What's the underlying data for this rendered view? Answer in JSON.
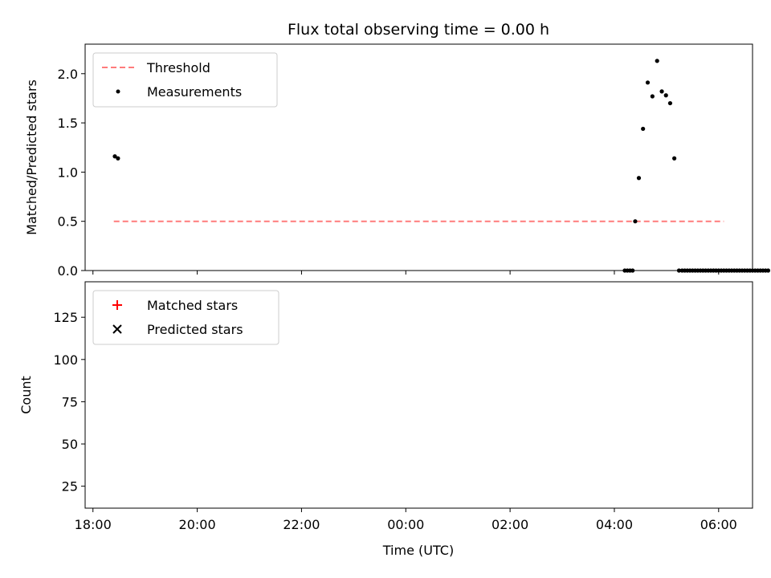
{
  "chart_data": [
    {
      "type": "scatter",
      "title": "Flux total observing time = 0.00 h",
      "xlabel": "",
      "ylabel": "Matched/Predicted stars",
      "ylim": [
        0,
        2.3
      ],
      "yticks": [
        0.0,
        0.5,
        1.0,
        1.5,
        2.0
      ],
      "ytick_labels": [
        "0.0",
        "0.5",
        "1.0",
        "1.5",
        "2.0"
      ],
      "xlim_hours": [
        17.85,
        30.65
      ],
      "legend_position": "top-left",
      "grid": false,
      "series": [
        {
          "name": "Threshold",
          "kind": "line",
          "style": "dashed",
          "color": "#ff7b7b",
          "x": [
            18.4,
            30.1
          ],
          "y": [
            0.5,
            0.5
          ]
        },
        {
          "name": "Measurements",
          "kind": "points",
          "color": "#000000",
          "x": [
            18.42,
            18.48,
            28.2,
            28.25,
            28.3,
            28.35,
            28.4,
            28.47,
            28.55,
            28.64,
            28.73,
            28.82,
            28.91,
            28.99,
            29.07,
            29.15,
            29.24,
            29.3,
            29.35,
            29.4,
            29.45,
            29.5,
            29.55,
            29.6,
            29.65,
            29.7,
            29.75,
            29.8,
            29.85,
            29.9,
            29.95,
            30.0,
            30.05,
            30.1,
            30.15,
            30.2,
            30.25,
            30.3,
            30.35,
            30.4,
            30.45,
            30.5,
            30.55,
            30.6,
            30.65,
            30.7,
            30.75,
            30.8,
            30.85,
            30.9,
            30.95
          ],
          "y": [
            1.16,
            1.14,
            0.0,
            0.0,
            0.0,
            0.0,
            0.5,
            0.94,
            1.44,
            1.91,
            1.77,
            2.13,
            1.82,
            1.78,
            1.7,
            1.14,
            0.0,
            0.0,
            0.0,
            0.0,
            0.0,
            0.0,
            0.0,
            0.0,
            0.0,
            0.0,
            0.0,
            0.0,
            0.0,
            0.0,
            0.0,
            0.0,
            0.0,
            0.0,
            0.0,
            0.0,
            0.0,
            0.0,
            0.0,
            0.0,
            0.0,
            0.0,
            0.0,
            0.0,
            0.0,
            0.0,
            0.0,
            0.0,
            0.0,
            0.0,
            0.0
          ]
        }
      ]
    },
    {
      "type": "scatter",
      "title": "",
      "xlabel": "Time (UTC)",
      "ylabel": "Count",
      "ylim": [
        12,
        146
      ],
      "yticks": [
        25,
        50,
        75,
        100,
        125
      ],
      "ytick_labels": [
        "25",
        "50",
        "75",
        "100",
        "125"
      ],
      "xlim_hours": [
        17.85,
        30.65
      ],
      "xticks_hours": [
        18,
        20,
        22,
        24,
        26,
        28,
        30
      ],
      "xtick_labels": [
        "18:00",
        "20:00",
        "22:00",
        "00:00",
        "02:00",
        "04:00",
        "06:00"
      ],
      "legend_position": "top-left",
      "grid": false,
      "series": [
        {
          "name": "Matched stars",
          "marker": "+",
          "color": "#ff0000",
          "x": [],
          "y": []
        },
        {
          "name": "Predicted stars",
          "marker": "x",
          "color": "#000000",
          "x": [],
          "y": []
        }
      ]
    }
  ]
}
